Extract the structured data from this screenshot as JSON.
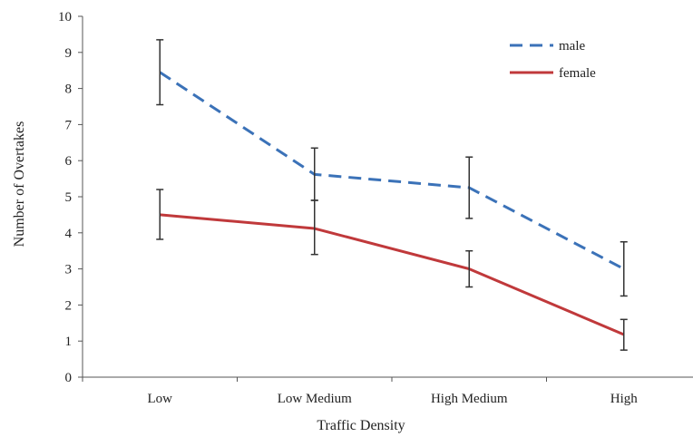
{
  "chart_data": {
    "type": "line",
    "categories": [
      "Low",
      "Low Medium",
      "High Medium",
      "High"
    ],
    "xlabel": "Traffic Density",
    "ylabel": "Number of Overtakes",
    "ylim": [
      0,
      10
    ],
    "yticks": [
      "0",
      "1",
      "2",
      "3",
      "4",
      "5",
      "6",
      "7",
      "8",
      "9",
      "10"
    ],
    "grid": false,
    "legend_position": "top-right",
    "series": [
      {
        "name": "male",
        "color": "#3b72b8",
        "line_style": "dashed",
        "values": [
          8.45,
          5.62,
          5.25,
          3.0
        ],
        "error_low": [
          7.55,
          4.9,
          4.4,
          2.25
        ],
        "error_high": [
          9.35,
          6.35,
          6.1,
          3.75
        ]
      },
      {
        "name": "female",
        "color": "#c0393b",
        "line_style": "solid",
        "values": [
          4.5,
          4.12,
          3.0,
          1.18
        ],
        "error_low": [
          3.82,
          3.4,
          2.5,
          0.75
        ],
        "error_high": [
          5.2,
          4.9,
          3.5,
          1.6
        ]
      }
    ]
  }
}
